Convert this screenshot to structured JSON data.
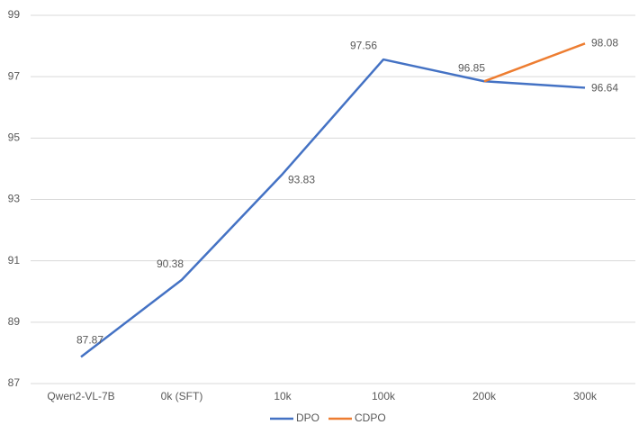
{
  "chart_data": {
    "type": "line",
    "categories": [
      "Qwen2-VL-7B",
      "0k (SFT)",
      "10k",
      "100k",
      "200k",
      "300k"
    ],
    "series": [
      {
        "name": "DPO",
        "color": "#4472c4",
        "values": [
          87.87,
          90.38,
          93.83,
          97.56,
          96.85,
          96.64
        ]
      },
      {
        "name": "CDPO",
        "color": "#ed7d31",
        "values": [
          null,
          null,
          null,
          null,
          96.85,
          98.08
        ]
      }
    ],
    "ylim": [
      87,
      99
    ],
    "yticks": [
      87,
      89,
      91,
      93,
      95,
      97,
      99
    ],
    "grid": true,
    "legend": "bottom"
  }
}
